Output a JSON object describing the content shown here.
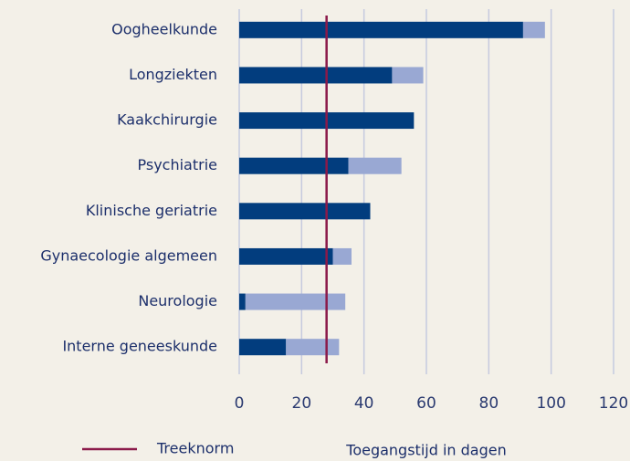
{
  "chart_data": {
    "type": "stacked-barh",
    "categories": [
      "Oogheelkunde",
      "Longziekten",
      "Kaakchirurgie",
      "Psychiatrie",
      "Klinische geriatrie",
      "Gynaecologie algemeen",
      "Neurologie",
      "Interne geneeskunde"
    ],
    "series": [
      {
        "color": "#023d7e",
        "values": [
          91,
          49,
          56,
          35,
          42,
          30,
          2,
          15
        ]
      },
      {
        "color": "#99a8d3",
        "values": [
          7,
          10,
          0,
          17,
          0,
          6,
          32,
          17
        ]
      }
    ],
    "xlim": [
      0,
      120
    ],
    "xticks": [
      0,
      20,
      40,
      60,
      80,
      100,
      120
    ],
    "xlabel": "Toegangstijd in dagen",
    "grid": true,
    "reference_line": {
      "value": 28,
      "label": "Treeknorm",
      "color": "#8b1a4a"
    }
  }
}
